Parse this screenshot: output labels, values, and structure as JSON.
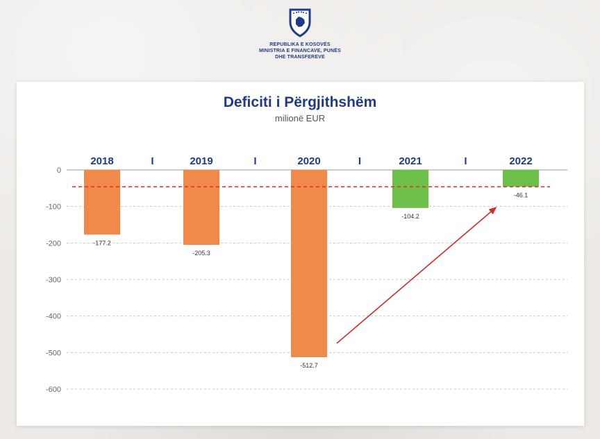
{
  "header": {
    "org_line1": "REPUBLIKA E KOSOVËS",
    "org_line2": "MINISTRIA E FINANCAVE, PUNËS",
    "org_line3": "DHE TRANSFEREVE"
  },
  "colors": {
    "negative_growth": "#f0894a",
    "improvement": "#6cc04a",
    "title": "#1f3a8a",
    "reference_line": "#e0312b",
    "arrow": "#d42a2a"
  },
  "icons": {
    "emblem": "kosovo-coat-of-arms-icon"
  },
  "chart_data": {
    "type": "bar",
    "title": "Deficiti i Përgjithshëm",
    "subtitle": "milionë EUR",
    "categories": [
      "2018",
      "2019",
      "2020",
      "2021",
      "2022"
    ],
    "values": [
      -177.2,
      -205.3,
      -512.7,
      -104.2,
      -46.1
    ],
    "value_labels": [
      "-177.2",
      "-205.3",
      "-512.7",
      "-104.2",
      "-46.1"
    ],
    "bar_colors": [
      "#f0894a",
      "#f0894a",
      "#f0894a",
      "#6cc04a",
      "#6cc04a"
    ],
    "category_separator": "I",
    "ylim": [
      -600,
      0
    ],
    "yticks": [
      0,
      -100,
      -200,
      -300,
      -400,
      -500,
      -600
    ],
    "grid": true,
    "x_axis_position": "top",
    "reference_line": {
      "value": -46.1,
      "style": "dashed"
    },
    "trend_arrow": {
      "from": "2020",
      "to": "2022"
    }
  }
}
